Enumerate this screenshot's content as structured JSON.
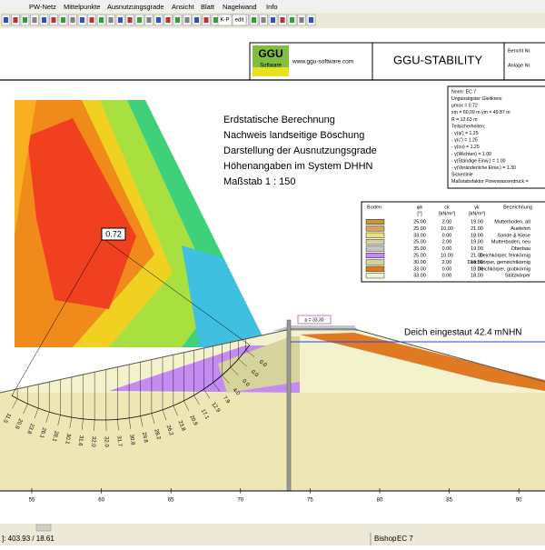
{
  "menu": [
    "PW-Netz",
    "Mittelpunkte",
    "Ausnutzungsgrade",
    "Ansicht",
    "Blatt",
    "Nagelwand",
    "Info"
  ],
  "toolbar": [
    "K-P",
    "edit"
  ],
  "title_block": {
    "logo_1": "GGU",
    "logo_2": "Software",
    "url": "www.ggu-software.com",
    "product": "GGU-STABILITY",
    "report_no": "Bericht Nr.",
    "annex_no": "Anlage Nr."
  },
  "info_box": [
    "Norm: EC 7",
    "Ungünstigster Gleitkreis:",
    "μmax = 0.72",
    "xm = 60.09 m   ym = 49.87 m",
    "R = 12.63 m",
    "Teilsicherheiten:",
    "- γ(φ') = 1.25",
    "- γ(c') = 1.25",
    "- γ(cu) = 1.25",
    "- γ(Wichten) = 1.00",
    "- γ(Ständige Einw.) = 1.00",
    "- γ(Veränderliche Einw.) = 1.30",
    "Sickerlinie",
    "Maßstabsfaktor Porenwasserdruck ="
  ],
  "heading": [
    "Erdstatische Berechnung",
    "Nachweis landseitige Böschung",
    "Darstellung der Ausnutzungsgrade",
    "Höhenangaben im System DHHN",
    "Maßstab 1 : 150"
  ],
  "legend": {
    "headers": [
      "Boden",
      "φk",
      "ck",
      "γk",
      "Bezeichnung"
    ],
    "units": [
      "[°]",
      "[kN/m²]",
      "[kN/m³]"
    ],
    "rows": [
      {
        "color": "#c49a3c",
        "phi": "25.00",
        "c": "2.00",
        "gamma": "19.00",
        "name": "Mutterboden, alt"
      },
      {
        "color": "#d9a25a",
        "phi": "25.00",
        "c": "10.00",
        "gamma": "21.00",
        "name": "Auelehm"
      },
      {
        "color": "#ece47a",
        "phi": "33.00",
        "c": "0.00",
        "gamma": "18.00",
        "name": "Sande & Kiese"
      },
      {
        "color": "#d8cfa0",
        "phi": "25.00",
        "c": "2.00",
        "gamma": "19.00",
        "name": "Mutterboden, neu"
      },
      {
        "color": "#c4c4c4",
        "phi": "35.00",
        "c": "0.00",
        "gamma": "19.00",
        "name": "Oberbau"
      },
      {
        "color": "#c48cf0",
        "phi": "25.00",
        "c": "10.00",
        "gamma": "21.00",
        "name": "Deichkörper, feinkörnig"
      },
      {
        "color": "#d6d49a",
        "phi": "30.00",
        "c": "2.00",
        "gamma": "18.00",
        "name": "Deichkörper, gemischtkörnig"
      },
      {
        "color": "#e07a22",
        "phi": "33.00",
        "c": "0.00",
        "gamma": "18.00",
        "name": "Deichkörper, grobkörnig"
      },
      {
        "color": "#f4f2cc",
        "phi": "33.00",
        "c": "0.00",
        "gamma": "18.00",
        "name": "Stützkörper"
      }
    ]
  },
  "drawing": {
    "utilization": "0.72",
    "load_label": "p = 33.30",
    "water_label": "Deich eingestaut 42.4 mNHN",
    "slice_values": [
      "11.5",
      "20.9",
      "23.8",
      "26.1",
      "28.1",
      "30.1",
      "31.6",
      "32.0",
      "32.0",
      "31.7",
      "30.8",
      "29.8",
      "28.2",
      "26.2",
      "23.8",
      "20.9",
      "17.1",
      "12.9",
      "7.9",
      "4.0",
      "0.0",
      "0.0",
      "0.0"
    ],
    "x_ticks": [
      "55",
      "60",
      "65",
      "70",
      "75",
      "80",
      "85",
      "90"
    ]
  },
  "status": {
    "coords": "]: 403.93 / 18.61",
    "method": "Bishop",
    "norm": "EC 7"
  }
}
